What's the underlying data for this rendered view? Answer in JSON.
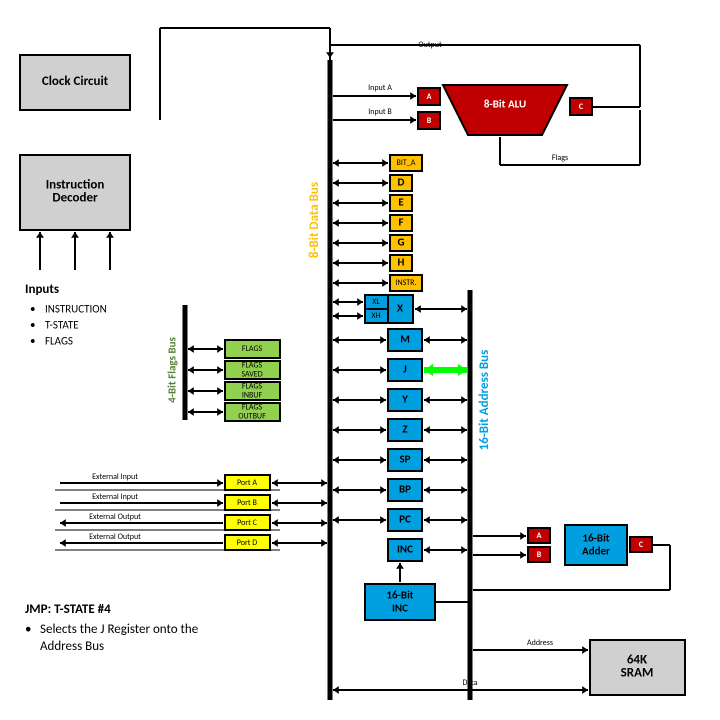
{
  "colors": {
    "blue": "#00a0e0",
    "orange": "#ffc000",
    "yellow": "#ffff00",
    "red": "#c00000",
    "green": "#92d050",
    "darkgreen": "#548235",
    "lime": "#00ff00",
    "gray": "#d0d0d0",
    "darkgray": "#808080",
    "white": "#ffffff",
    "black": "#000000"
  },
  "boxes": {
    "clock": {
      "label": "Clock Circuit"
    },
    "decoder": {
      "label": "Instruction\nDecoder"
    },
    "alu": {
      "label": "8-Bit ALU"
    },
    "sram": {
      "label": "64K\nSRAM"
    },
    "adder": {
      "label": "16-Bit\nAdder"
    },
    "inc": {
      "label": "16-Bit\nINC"
    }
  },
  "inputs": {
    "title": "Inputs",
    "items": [
      "INSTRUCTION",
      "T-STATE",
      "FLAGS"
    ]
  },
  "flags_boxes": [
    "FLAGS",
    "FLAGS\nSAVED",
    "FLAGS\nINBUF",
    "FLAGS\nOUTBUF"
  ],
  "orange_regs": [
    "BIT_A",
    "D",
    "E",
    "F",
    "G",
    "H",
    "INSTR."
  ],
  "blue_regs": [
    "M",
    "J",
    "Y",
    "Z",
    "SP",
    "BP",
    "PC",
    "INC"
  ],
  "x_reg": {
    "main": "X",
    "sub": [
      "XL",
      "XH"
    ]
  },
  "ports": [
    {
      "label": "Port A",
      "ext": "External Input",
      "dir": "in"
    },
    {
      "label": "Port B",
      "ext": "External Input",
      "dir": "in"
    },
    {
      "label": "Port C",
      "ext": "External Output",
      "dir": "out"
    },
    {
      "label": "Port D",
      "ext": "External Output",
      "dir": "out"
    }
  ],
  "alu_regs": {
    "left": [
      "A",
      "B"
    ],
    "right": "C"
  },
  "adder_regs": {
    "left": [
      "A",
      "B"
    ],
    "right": "C"
  },
  "buses": {
    "data": "8-Bit Data Bus",
    "address": "16-Bit Address Bus",
    "flags": "4-Bit Flags Bus"
  },
  "labels": {
    "output": "Output",
    "input_a": "Input A",
    "input_b": "Input B",
    "flags": "Flags",
    "address": "Address",
    "data": "Data"
  },
  "note": {
    "title": "JMP: T-STATE #4",
    "body": "Selects the J Register onto the Address Bus"
  }
}
